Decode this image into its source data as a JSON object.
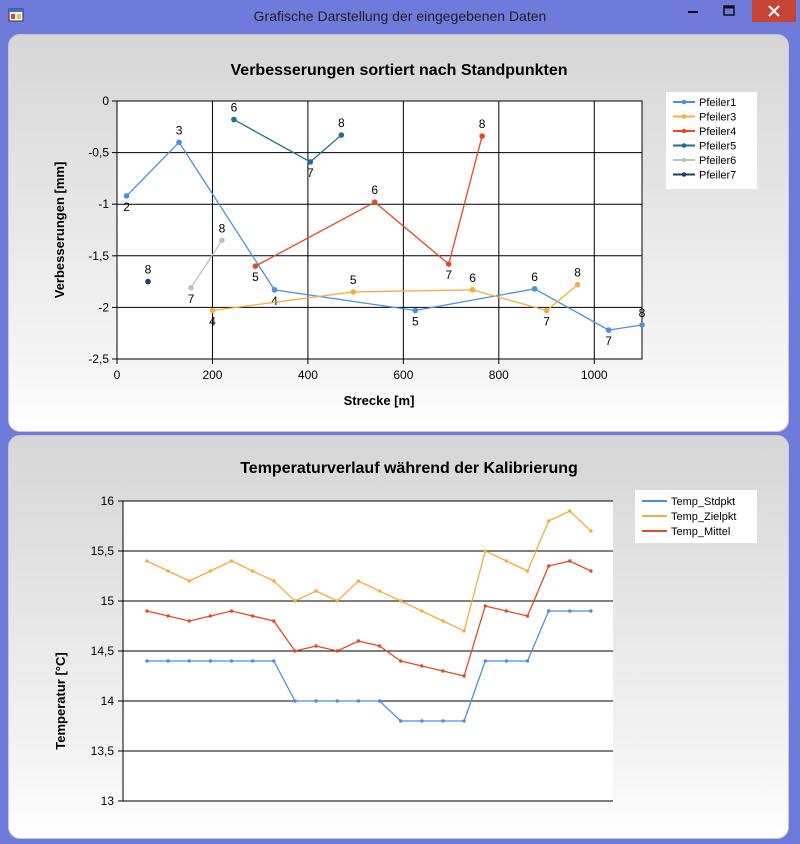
{
  "window": {
    "title": "Grafische Darstellung der eingegebenen Daten",
    "accent": "#6f7bdb",
    "close_color": "#c74536"
  },
  "chart_data": [
    {
      "type": "line",
      "title": "Verbesserungen sortiert nach Standpunkten",
      "xlabel": "Strecke [m]",
      "ylabel": "Verbesserungen [mm]",
      "xlim": [
        0,
        1100
      ],
      "ylim": [
        -2.5,
        0
      ],
      "xticks": [
        "0",
        "200",
        "400",
        "600",
        "800",
        "1000"
      ],
      "yticks": [
        "0",
        "-0,5",
        "-1",
        "-1,5",
        "-2",
        "-2,5"
      ],
      "grid": true,
      "legend_position": "top-right",
      "series": [
        {
          "name": "Pfeiler1",
          "color": "#4b8fe0",
          "points": [
            {
              "x": 20,
              "y": -0.92,
              "label": "2"
            },
            {
              "x": 130,
              "y": -0.4,
              "label": "3"
            },
            {
              "x": 330,
              "y": -1.83,
              "label": "4"
            },
            {
              "x": 625,
              "y": -2.03,
              "label": "5"
            },
            {
              "x": 875,
              "y": -1.82,
              "label": "6"
            },
            {
              "x": 1030,
              "y": -2.22,
              "label": "7"
            },
            {
              "x": 1100,
              "y": -2.17,
              "label": "8"
            }
          ]
        },
        {
          "name": "Pfeiler3",
          "color": "#f6ac3e",
          "points": [
            {
              "x": 200,
              "y": -2.03,
              "label": "4"
            },
            {
              "x": 495,
              "y": -1.85,
              "label": "5"
            },
            {
              "x": 745,
              "y": -1.83,
              "label": "6"
            },
            {
              "x": 900,
              "y": -2.03,
              "label": "7"
            },
            {
              "x": 965,
              "y": -1.78,
              "label": "8"
            }
          ]
        },
        {
          "name": "Pfeiler4",
          "color": "#e04c24",
          "points": [
            {
              "x": 290,
              "y": -1.6,
              "label": "5"
            },
            {
              "x": 540,
              "y": -0.98,
              "label": "6"
            },
            {
              "x": 695,
              "y": -1.58,
              "label": "7"
            },
            {
              "x": 765,
              "y": -0.34,
              "label": "8"
            }
          ]
        },
        {
          "name": "Pfeiler5",
          "color": "#1c6e8c",
          "points": [
            {
              "x": 245,
              "y": -0.18,
              "label": "6"
            },
            {
              "x": 405,
              "y": -0.59,
              "label": "7"
            },
            {
              "x": 470,
              "y": -0.33,
              "label": "8"
            }
          ]
        },
        {
          "name": "Pfeiler6",
          "color": "#c0c0c0",
          "points": [
            {
              "x": 155,
              "y": -1.81,
              "label": "7"
            },
            {
              "x": 220,
              "y": -1.35,
              "label": "8"
            }
          ]
        },
        {
          "name": "Pfeiler7",
          "color": "#1c3c6a",
          "points": [
            {
              "x": 65,
              "y": -1.75,
              "label": "8"
            }
          ]
        }
      ]
    },
    {
      "type": "line",
      "title": "Temperaturverlauf während der Kalibrierung",
      "xlabel": "",
      "ylabel": "Temperatur [°C]",
      "ylim": [
        13,
        16
      ],
      "yticks": [
        "16",
        "15,5",
        "15",
        "14,5",
        "14",
        "13,5",
        "13"
      ],
      "grid": true,
      "legend_position": "top-right",
      "series": [
        {
          "name": "Temp_Stdpkt",
          "color": "#4b8fe0",
          "values": [
            14.4,
            14.4,
            14.4,
            14.4,
            14.4,
            14.4,
            14.4,
            14.0,
            14.0,
            14.0,
            14.0,
            14.0,
            13.8,
            13.8,
            13.8,
            13.8,
            14.4,
            14.4,
            14.4,
            14.9,
            14.9,
            14.9
          ]
        },
        {
          "name": "Temp_Zielpkt",
          "color": "#f6ac3e",
          "values": [
            15.4,
            15.3,
            15.2,
            15.3,
            15.4,
            15.3,
            15.2,
            15.0,
            15.1,
            15.0,
            15.2,
            15.1,
            15.0,
            14.9,
            14.8,
            14.7,
            15.5,
            15.4,
            15.3,
            15.8,
            15.9,
            15.7
          ]
        },
        {
          "name": "Temp_Mittel",
          "color": "#e04c24",
          "values": [
            14.9,
            14.85,
            14.8,
            14.85,
            14.9,
            14.85,
            14.8,
            14.5,
            14.55,
            14.5,
            14.6,
            14.55,
            14.4,
            14.35,
            14.3,
            14.25,
            14.95,
            14.9,
            14.85,
            15.35,
            15.4,
            15.3
          ]
        }
      ]
    }
  ]
}
